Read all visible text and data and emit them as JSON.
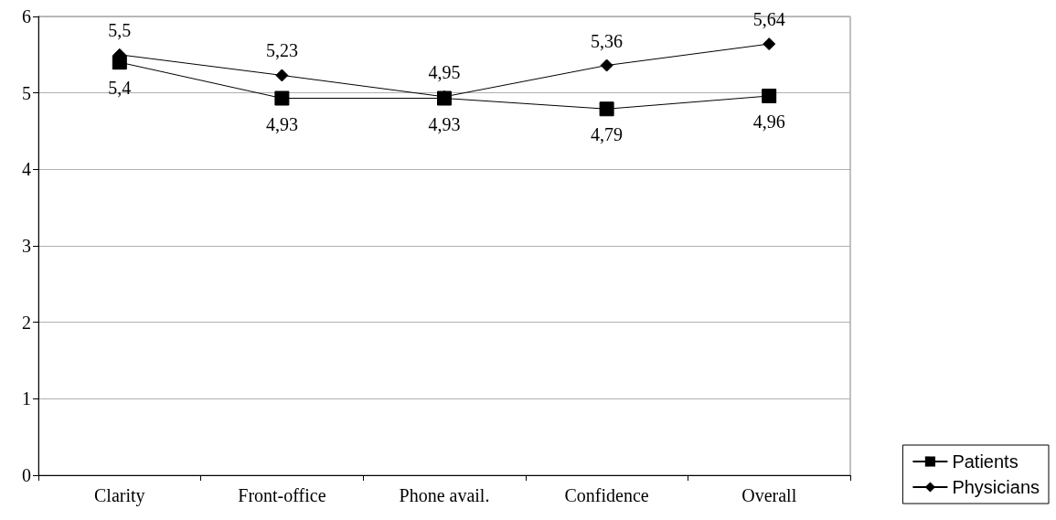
{
  "chart_data": {
    "type": "line",
    "categories": [
      "Clarity",
      "Front-office",
      "Phone avail.",
      "Confidence",
      "Overall"
    ],
    "series": [
      {
        "name": "Patients",
        "color": "#000000",
        "marker": "square",
        "values": [
          5.4,
          4.93,
          4.93,
          4.79,
          4.96
        ],
        "value_labels": [
          "5,4",
          "4,93",
          "4,93",
          "4,79",
          "4,96"
        ]
      },
      {
        "name": "Physicians",
        "color": "#000000",
        "marker": "diamond",
        "values": [
          5.5,
          5.23,
          4.95,
          5.36,
          5.64
        ],
        "value_labels": [
          "5,5",
          "5,23",
          "4,95",
          "5,36",
          "5,64"
        ]
      }
    ],
    "ylim": [
      0,
      6
    ],
    "yticks": [
      0,
      1,
      2,
      3,
      4,
      5,
      6
    ],
    "grid": "y",
    "legend": "bottom right"
  }
}
